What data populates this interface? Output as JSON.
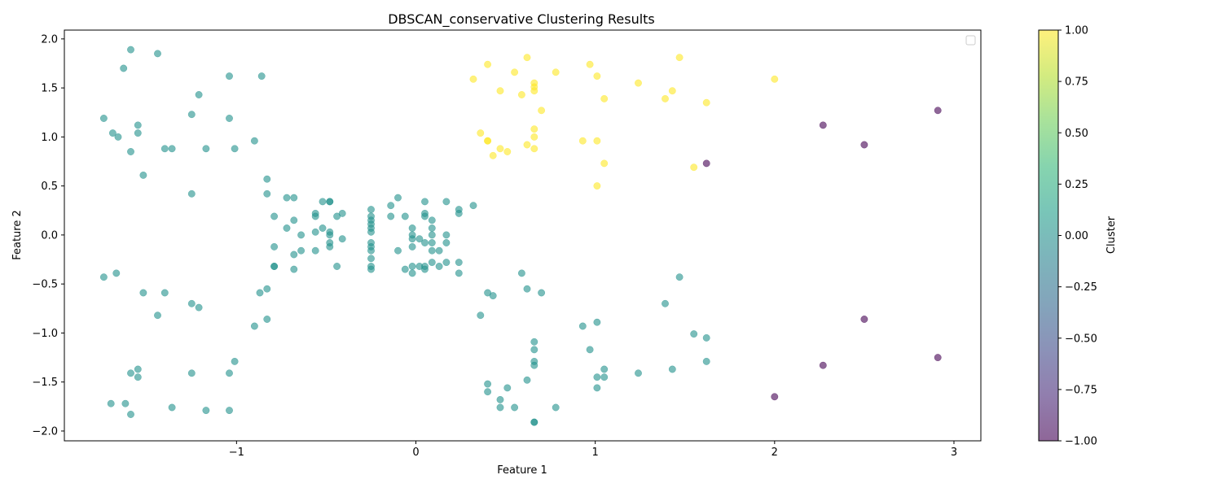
{
  "chart_data": {
    "type": "scatter",
    "title": "DBSCAN_conservative Clustering Results",
    "xlabel": "Feature 1",
    "ylabel": "Feature 2",
    "xlim": [
      -1.96,
      3.15
    ],
    "ylim": [
      -2.1,
      2.09
    ],
    "xticks": [
      -1,
      0,
      1,
      2,
      3
    ],
    "xtick_labels": [
      "−1",
      "0",
      "1",
      "2",
      "3"
    ],
    "yticks": [
      -2.0,
      -1.5,
      -1.0,
      -0.5,
      0.0,
      0.5,
      1.0,
      1.5,
      2.0
    ],
    "ytick_labels": [
      "−2.0",
      "−1.5",
      "−1.0",
      "−0.5",
      "0.0",
      "0.5",
      "1.0",
      "1.5",
      "2.0"
    ],
    "grid": false,
    "legend": {
      "placement": "top-right",
      "entries": []
    },
    "point_alpha": 0.6,
    "colorbar": {
      "label": "Cluster",
      "range": [
        -1,
        1
      ],
      "ticks": [
        -1.0,
        -0.75,
        -0.5,
        -0.25,
        0.0,
        0.25,
        0.5,
        0.75,
        1.0
      ],
      "tick_labels": [
        "−1.00",
        "−0.75",
        "−0.50",
        "−0.25",
        "0.00",
        "0.25",
        "0.50",
        "0.75",
        "1.00"
      ],
      "colormap": "viridis",
      "gradient_colors": [
        "#440154",
        "#482878",
        "#3e4989",
        "#31688e",
        "#26828e",
        "#1f9e89",
        "#35b779",
        "#6ece58",
        "#b5de2b",
        "#fde725"
      ]
    },
    "series": [
      {
        "cluster": -1,
        "color": "#440154",
        "points": [
          [
            2.91,
            1.27
          ],
          [
            2.27,
            1.12
          ],
          [
            2.5,
            0.92
          ],
          [
            1.62,
            0.73
          ],
          [
            2.5,
            -0.86
          ],
          [
            2.91,
            -1.25
          ],
          [
            2.27,
            -1.33
          ],
          [
            2.0,
            -1.65
          ]
        ]
      },
      {
        "cluster": 0,
        "color": "#21918c",
        "points": [
          [
            -1.59,
            1.89
          ],
          [
            -1.44,
            1.85
          ],
          [
            -1.63,
            1.7
          ],
          [
            -1.04,
            1.62
          ],
          [
            -0.86,
            1.62
          ],
          [
            -1.21,
            1.43
          ],
          [
            -1.25,
            1.23
          ],
          [
            -1.74,
            1.19
          ],
          [
            -1.04,
            1.19
          ],
          [
            -1.55,
            1.12
          ],
          [
            -1.69,
            1.04
          ],
          [
            -1.55,
            1.04
          ],
          [
            -1.66,
            1.0
          ],
          [
            -0.9,
            0.96
          ],
          [
            -1.4,
            0.88
          ],
          [
            -1.36,
            0.88
          ],
          [
            -1.17,
            0.88
          ],
          [
            -1.01,
            0.88
          ],
          [
            -1.59,
            0.85
          ],
          [
            -1.52,
            0.61
          ],
          [
            -0.83,
            0.57
          ],
          [
            -1.25,
            0.42
          ],
          [
            -0.83,
            0.42
          ],
          [
            -1.74,
            -0.43
          ],
          [
            -1.67,
            -0.39
          ],
          [
            -1.52,
            -0.59
          ],
          [
            -1.4,
            -0.59
          ],
          [
            -0.87,
            -0.59
          ],
          [
            -0.83,
            -0.55
          ],
          [
            -1.25,
            -0.7
          ],
          [
            -1.21,
            -0.74
          ],
          [
            -1.44,
            -0.82
          ],
          [
            -0.83,
            -0.86
          ],
          [
            -0.9,
            -0.93
          ],
          [
            -1.01,
            -1.29
          ],
          [
            -1.55,
            -1.37
          ],
          [
            -1.59,
            -1.41
          ],
          [
            -1.25,
            -1.41
          ],
          [
            -1.04,
            -1.41
          ],
          [
            -1.55,
            -1.45
          ],
          [
            -1.7,
            -1.72
          ],
          [
            -1.62,
            -1.72
          ],
          [
            -1.36,
            -1.76
          ],
          [
            -1.17,
            -1.79
          ],
          [
            -1.04,
            -1.79
          ],
          [
            -1.59,
            -1.83
          ],
          [
            -0.1,
            0.38
          ],
          [
            -0.72,
            0.38
          ],
          [
            -0.68,
            0.38
          ],
          [
            -0.52,
            0.34
          ],
          [
            -0.48,
            0.34
          ],
          [
            -0.48,
            0.34
          ],
          [
            0.05,
            0.34
          ],
          [
            0.17,
            0.34
          ],
          [
            0.32,
            0.3
          ],
          [
            -0.14,
            0.3
          ],
          [
            -0.25,
            0.26
          ],
          [
            0.24,
            0.26
          ],
          [
            -0.56,
            0.22
          ],
          [
            -0.41,
            0.22
          ],
          [
            0.05,
            0.22
          ],
          [
            0.24,
            0.22
          ],
          [
            -0.79,
            0.19
          ],
          [
            -0.56,
            0.19
          ],
          [
            -0.44,
            0.19
          ],
          [
            -0.25,
            0.19
          ],
          [
            -0.14,
            0.19
          ],
          [
            -0.06,
            0.19
          ],
          [
            0.05,
            0.19
          ],
          [
            -0.68,
            0.15
          ],
          [
            -0.25,
            0.15
          ],
          [
            0.09,
            0.15
          ],
          [
            -0.25,
            0.11
          ],
          [
            -0.72,
            0.07
          ],
          [
            -0.52,
            0.07
          ],
          [
            -0.25,
            0.07
          ],
          [
            -0.02,
            0.07
          ],
          [
            0.09,
            0.07
          ],
          [
            -0.56,
            0.03
          ],
          [
            -0.48,
            0.03
          ],
          [
            -0.25,
            0.03
          ],
          [
            -0.64,
            0.0
          ],
          [
            -0.48,
            0.0
          ],
          [
            -0.02,
            0.0
          ],
          [
            0.09,
            0.0
          ],
          [
            0.17,
            0.0
          ],
          [
            -0.41,
            -0.04
          ],
          [
            -0.02,
            -0.04
          ],
          [
            0.02,
            -0.04
          ],
          [
            -0.48,
            -0.08
          ],
          [
            -0.25,
            -0.08
          ],
          [
            0.05,
            -0.08
          ],
          [
            0.09,
            -0.08
          ],
          [
            0.17,
            -0.08
          ],
          [
            -0.79,
            -0.12
          ],
          [
            -0.48,
            -0.12
          ],
          [
            -0.25,
            -0.12
          ],
          [
            -0.02,
            -0.12
          ],
          [
            -0.64,
            -0.16
          ],
          [
            -0.56,
            -0.16
          ],
          [
            -0.25,
            -0.16
          ],
          [
            -0.1,
            -0.16
          ],
          [
            0.09,
            -0.16
          ],
          [
            0.13,
            -0.16
          ],
          [
            -0.68,
            -0.2
          ],
          [
            -0.25,
            -0.24
          ],
          [
            0.09,
            -0.28
          ],
          [
            0.17,
            -0.28
          ],
          [
            0.24,
            -0.28
          ],
          [
            -0.79,
            -0.32
          ],
          [
            -0.79,
            -0.32
          ],
          [
            -0.44,
            -0.32
          ],
          [
            -0.25,
            -0.32
          ],
          [
            -0.02,
            -0.32
          ],
          [
            0.02,
            -0.32
          ],
          [
            0.05,
            -0.32
          ],
          [
            0.13,
            -0.32
          ],
          [
            -0.68,
            -0.35
          ],
          [
            -0.25,
            -0.35
          ],
          [
            -0.06,
            -0.35
          ],
          [
            0.05,
            -0.35
          ],
          [
            -0.02,
            -0.39
          ],
          [
            0.24,
            -0.39
          ],
          [
            0.59,
            -0.39
          ],
          [
            1.47,
            -0.43
          ],
          [
            0.62,
            -0.55
          ],
          [
            0.4,
            -0.59
          ],
          [
            0.7,
            -0.59
          ],
          [
            0.43,
            -0.62
          ],
          [
            1.39,
            -0.7
          ],
          [
            0.36,
            -0.82
          ],
          [
            1.01,
            -0.89
          ],
          [
            0.93,
            -0.93
          ],
          [
            1.55,
            -1.01
          ],
          [
            1.62,
            -1.05
          ],
          [
            0.66,
            -1.09
          ],
          [
            0.97,
            -1.17
          ],
          [
            0.66,
            -1.17
          ],
          [
            0.66,
            -1.29
          ],
          [
            1.62,
            -1.29
          ],
          [
            0.66,
            -1.33
          ],
          [
            1.05,
            -1.37
          ],
          [
            1.43,
            -1.37
          ],
          [
            1.24,
            -1.41
          ],
          [
            1.01,
            -1.45
          ],
          [
            1.05,
            -1.45
          ],
          [
            0.62,
            -1.48
          ],
          [
            0.4,
            -1.52
          ],
          [
            0.51,
            -1.56
          ],
          [
            1.01,
            -1.56
          ],
          [
            0.4,
            -1.6
          ],
          [
            0.47,
            -1.68
          ],
          [
            0.47,
            -1.76
          ],
          [
            0.55,
            -1.76
          ],
          [
            0.78,
            -1.76
          ],
          [
            0.66,
            -1.91
          ],
          [
            0.66,
            -1.91
          ]
        ]
      },
      {
        "cluster": 1,
        "color": "#fde725",
        "points": [
          [
            0.62,
            1.81
          ],
          [
            1.47,
            1.81
          ],
          [
            0.4,
            1.74
          ],
          [
            0.97,
            1.74
          ],
          [
            0.55,
            1.66
          ],
          [
            0.78,
            1.66
          ],
          [
            1.01,
            1.62
          ],
          [
            0.32,
            1.59
          ],
          [
            2.0,
            1.59
          ],
          [
            0.66,
            1.55
          ],
          [
            1.24,
            1.55
          ],
          [
            0.66,
            1.51
          ],
          [
            0.47,
            1.47
          ],
          [
            0.66,
            1.47
          ],
          [
            1.43,
            1.47
          ],
          [
            0.59,
            1.43
          ],
          [
            1.05,
            1.39
          ],
          [
            1.39,
            1.39
          ],
          [
            1.62,
            1.35
          ],
          [
            0.7,
            1.27
          ],
          [
            0.66,
            1.08
          ],
          [
            0.36,
            1.04
          ],
          [
            0.66,
            1.0
          ],
          [
            0.4,
            0.96
          ],
          [
            0.4,
            0.96
          ],
          [
            0.93,
            0.96
          ],
          [
            1.01,
            0.96
          ],
          [
            0.62,
            0.92
          ],
          [
            0.47,
            0.88
          ],
          [
            0.66,
            0.88
          ],
          [
            0.51,
            0.85
          ],
          [
            0.43,
            0.81
          ],
          [
            1.05,
            0.73
          ],
          [
            1.55,
            0.69
          ],
          [
            1.01,
            0.5
          ]
        ]
      }
    ]
  }
}
